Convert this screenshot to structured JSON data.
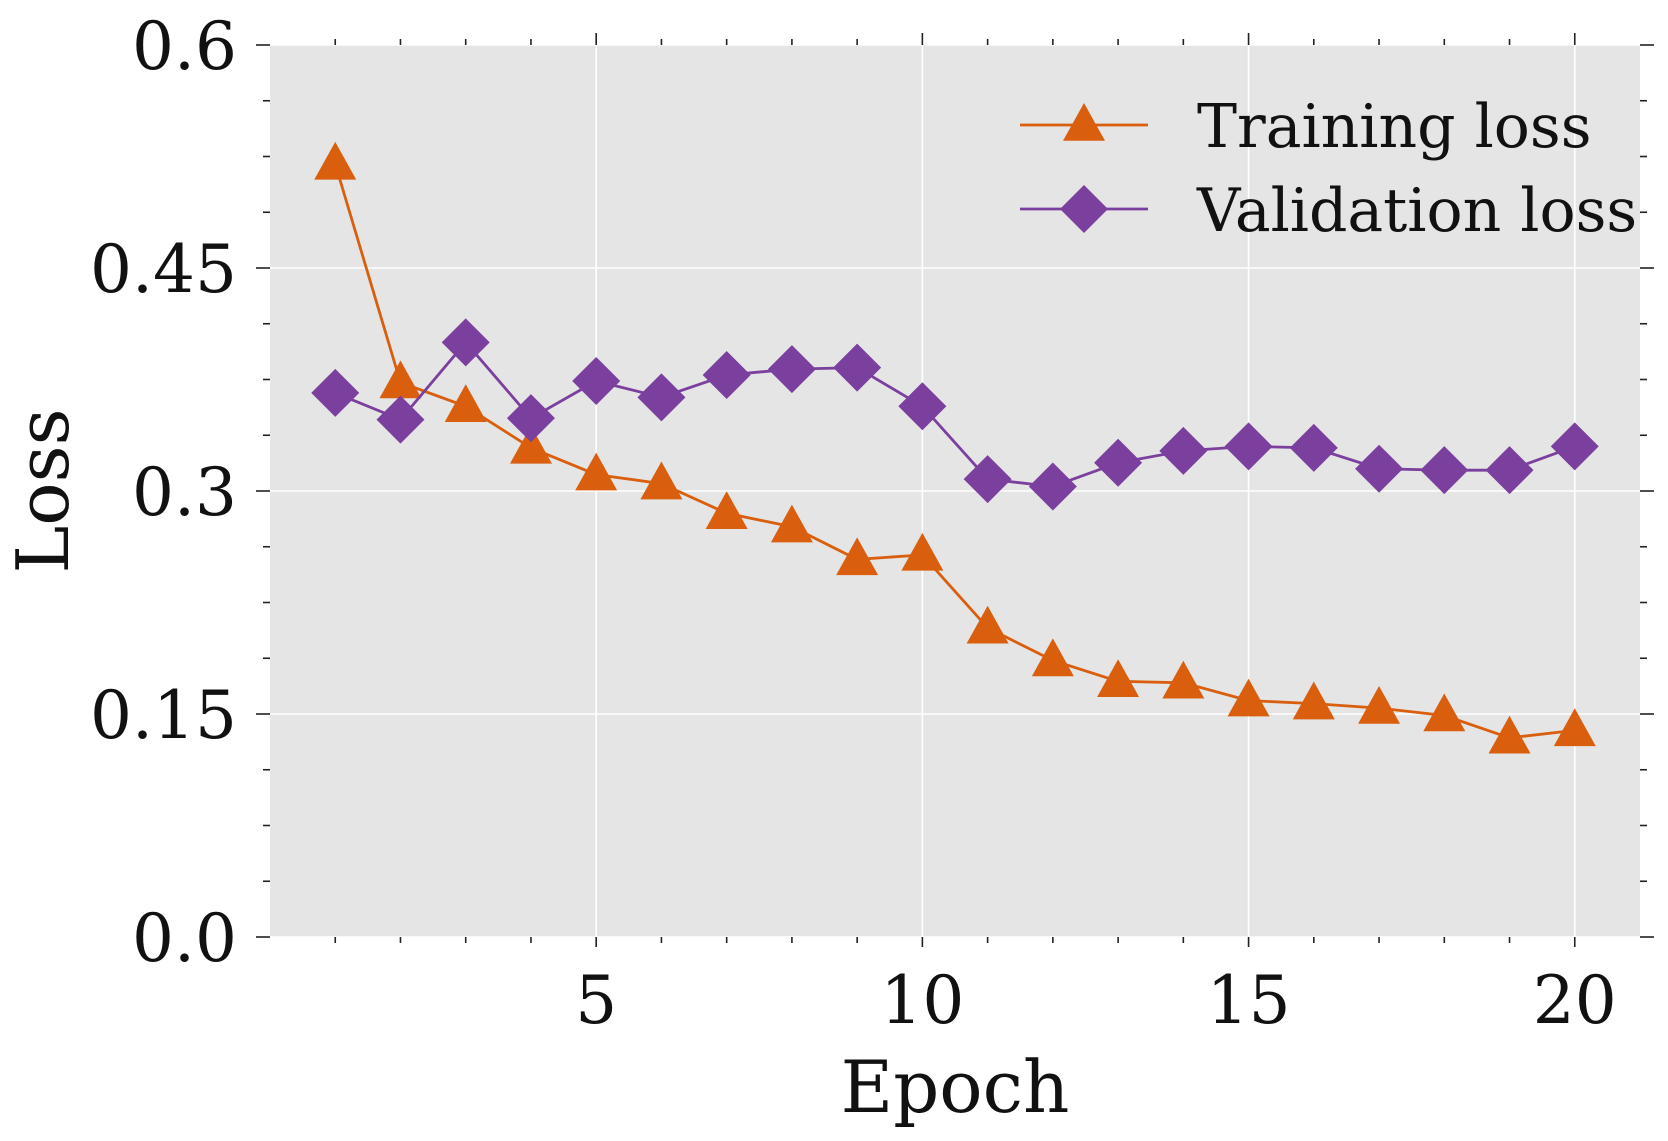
{
  "chart_data": {
    "type": "line",
    "xlabel": "Epoch",
    "ylabel": "Loss",
    "xlim": [
      0,
      21
    ],
    "ylim": [
      0,
      0.6
    ],
    "xticks": [
      5,
      10,
      15,
      20
    ],
    "xtick_labels": [
      "5",
      "10",
      "15",
      "20"
    ],
    "yticks": [
      0,
      0.15,
      0.3,
      0.45,
      0.6
    ],
    "ytick_labels": [
      "0.0",
      "0.15",
      "0.3",
      "0.45",
      "0.6"
    ],
    "grid": true,
    "legend_position": "top-right",
    "x": [
      1,
      2,
      3,
      4,
      5,
      6,
      7,
      8,
      9,
      10,
      11,
      12,
      13,
      14,
      15,
      16,
      17,
      18,
      19,
      20
    ],
    "series": [
      {
        "name": "Training loss",
        "marker": "triangle",
        "color": "#d95f0e",
        "values": [
          0.52,
          0.373,
          0.357,
          0.329,
          0.311,
          0.305,
          0.285,
          0.276,
          0.254,
          0.257,
          0.208,
          0.186,
          0.172,
          0.171,
          0.159,
          0.157,
          0.154,
          0.149,
          0.134,
          0.139
        ]
      },
      {
        "name": "Validation loss",
        "marker": "diamond",
        "color": "#7b3f9e",
        "values": [
          0.366,
          0.348,
          0.4,
          0.349,
          0.374,
          0.363,
          0.378,
          0.382,
          0.383,
          0.357,
          0.308,
          0.303,
          0.319,
          0.327,
          0.33,
          0.329,
          0.315,
          0.314,
          0.314,
          0.33
        ]
      }
    ]
  },
  "colors": {
    "plot_background": "#e5e5e5",
    "grid": "#ffffff"
  }
}
